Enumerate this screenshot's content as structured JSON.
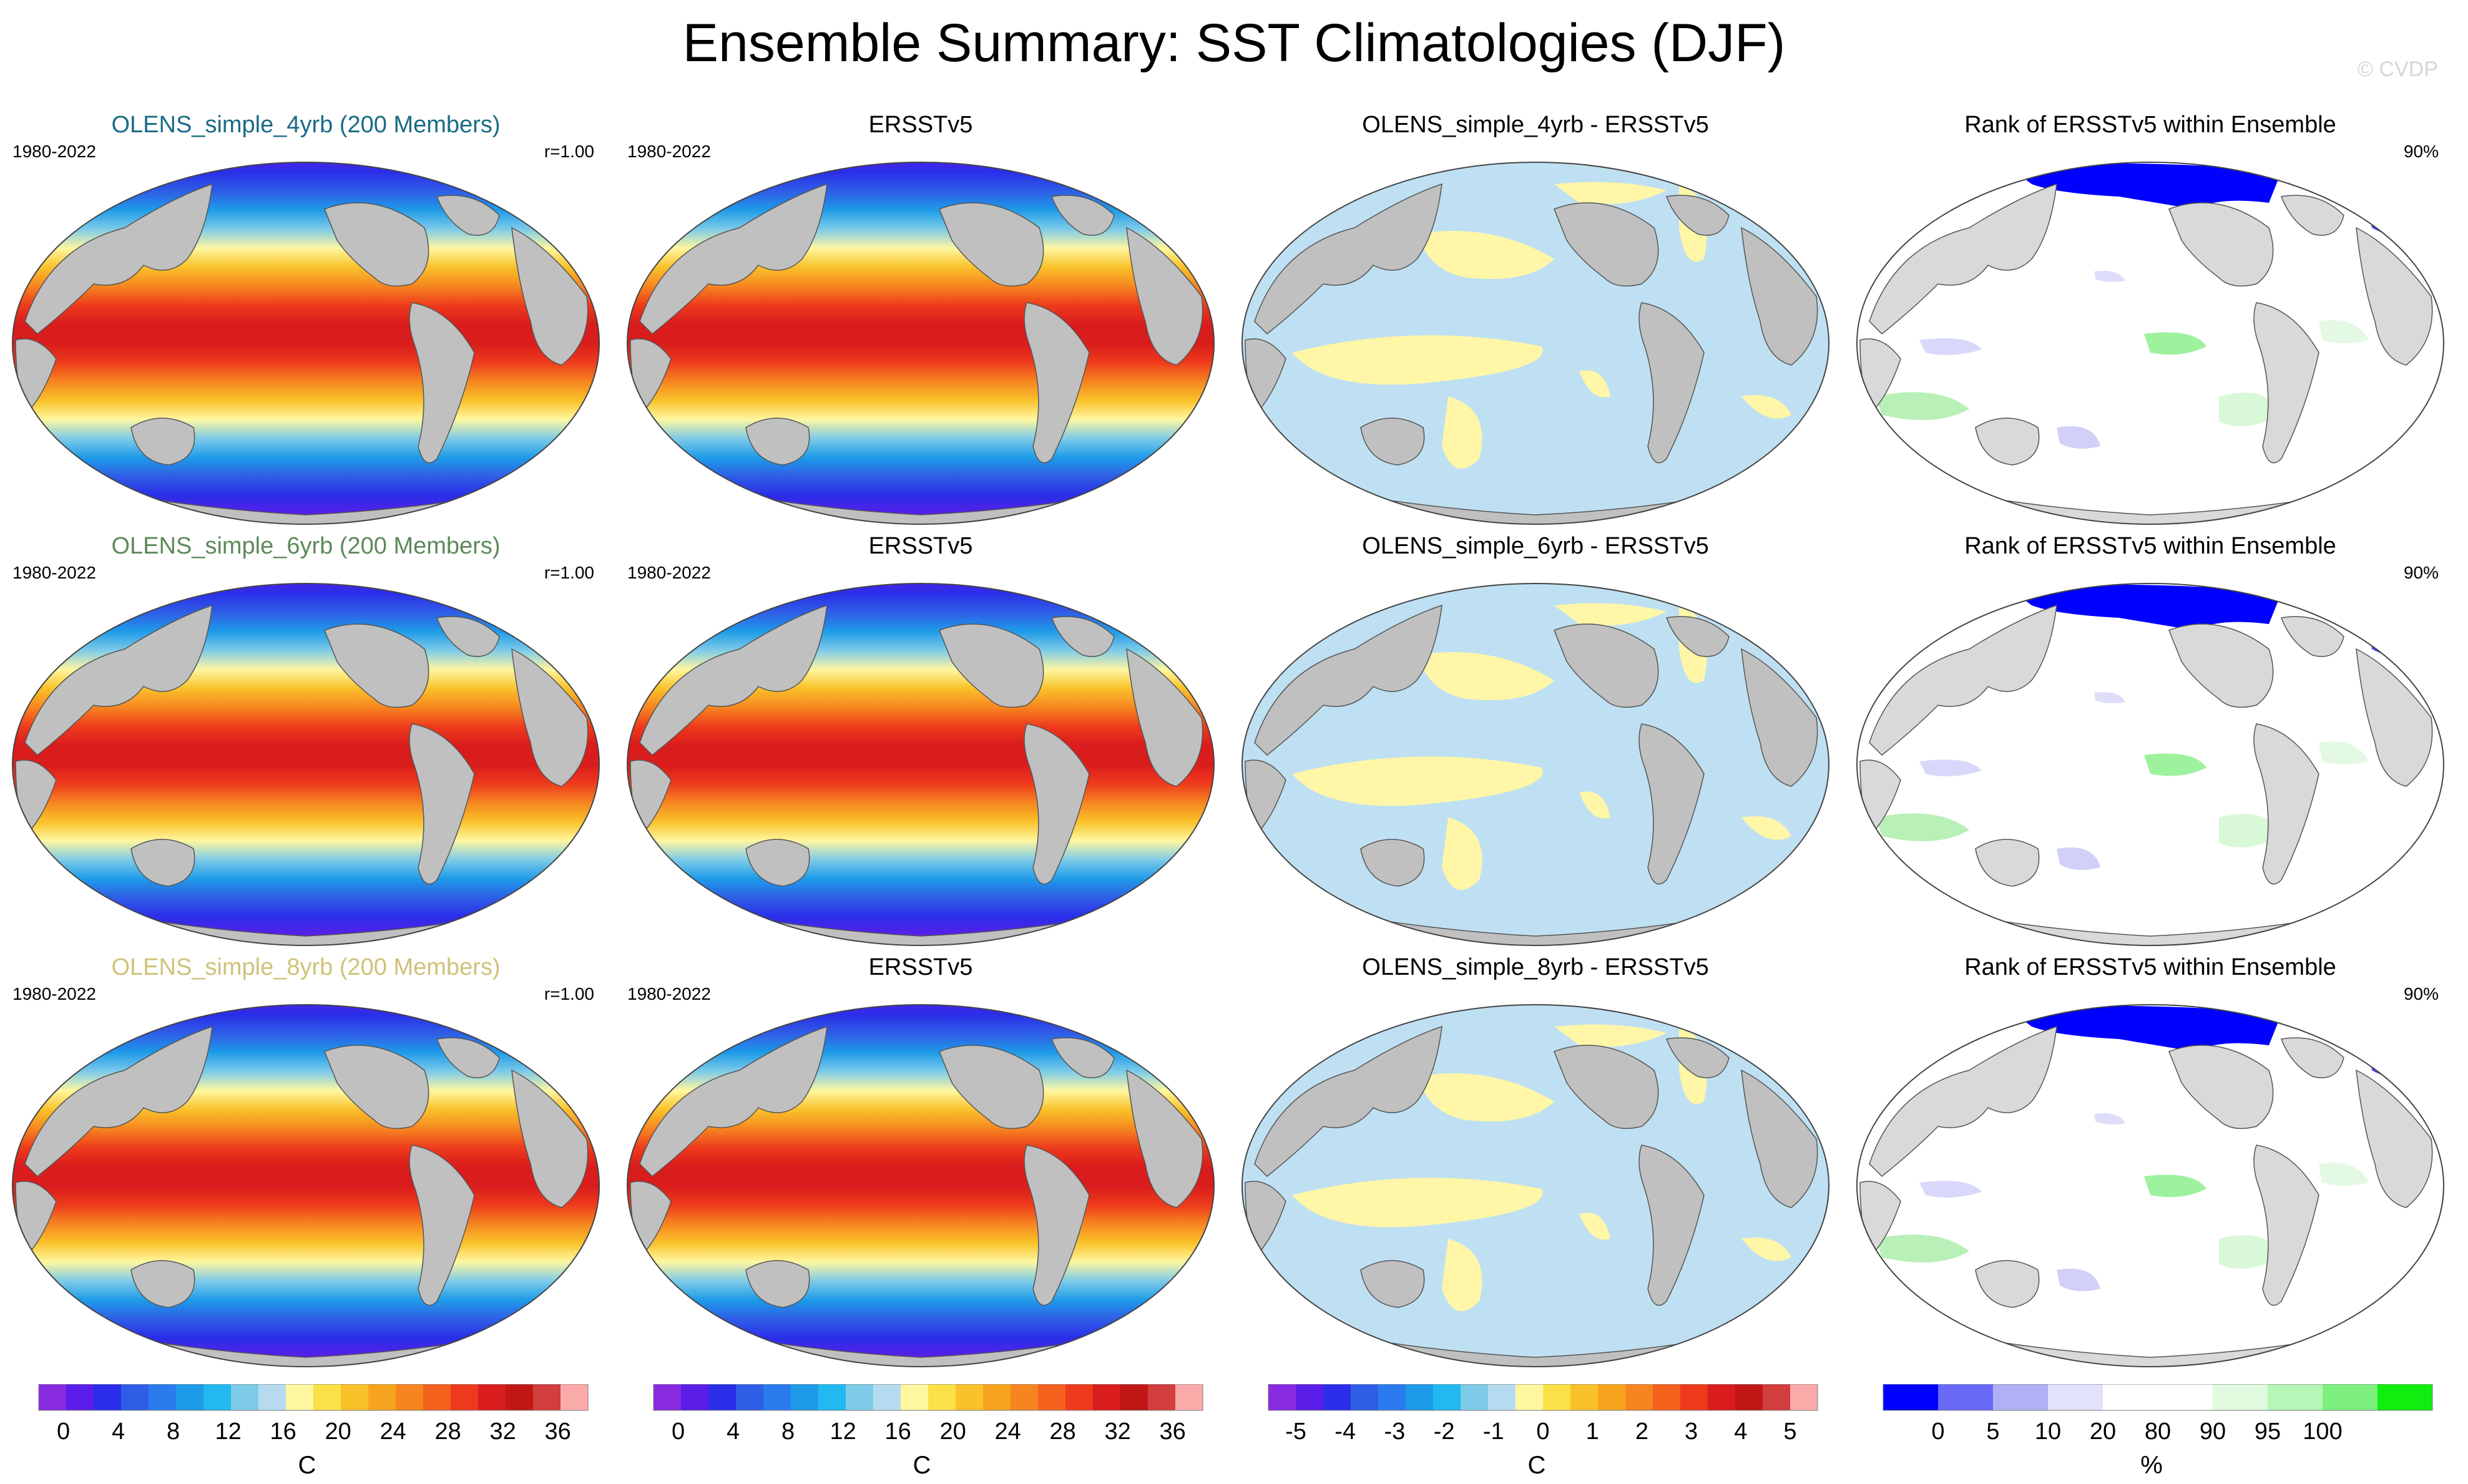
{
  "title": "Ensemble Summary: SST Climatologies (DJF)",
  "copyright": "© CVDP",
  "rows": [
    {
      "ensemble_title": "OLENS_simple_4yrb (200 Members)",
      "ensemble_title_color": "#1a6b86",
      "years": "1980-2022",
      "pattern_corr": "r=1.00",
      "obs_title": "ERSSTv5",
      "obs_years": "1980-2022",
      "diff_title": "OLENS_simple_4yrb - ERSSTv5",
      "rank_title": "Rank of ERSSTv5 within Ensemble",
      "rank_pct": "90%"
    },
    {
      "ensemble_title": "OLENS_simple_6yrb (200 Members)",
      "ensemble_title_color": "#5c8a5a",
      "years": "1980-2022",
      "pattern_corr": "r=1.00",
      "obs_title": "ERSSTv5",
      "obs_years": "1980-2022",
      "diff_title": "OLENS_simple_6yrb - ERSSTv5",
      "rank_title": "Rank of ERSSTv5 within Ensemble",
      "rank_pct": "90%"
    },
    {
      "ensemble_title": "OLENS_simple_8yrb (200 Members)",
      "ensemble_title_color": "#cfc27a",
      "years": "1980-2022",
      "pattern_corr": "r=1.00",
      "obs_title": "ERSSTv5",
      "obs_years": "1980-2022",
      "diff_title": "OLENS_simple_8yrb - ERSSTv5",
      "rank_title": "Rank of ERSSTv5 within Ensemble",
      "rank_pct": "90%"
    }
  ],
  "colorbars": [
    {
      "kind": "sst",
      "unit": "C",
      "labels": [
        "0",
        "4",
        "8",
        "12",
        "16",
        "20",
        "24",
        "28",
        "32",
        "36"
      ],
      "colors": [
        "#8a2be2",
        "#5a1ee8",
        "#2a2ee8",
        "#2f5ee6",
        "#2b7bef",
        "#1e9be8",
        "#22b8f0",
        "#7ecbe8",
        "#b6dbf1",
        "#fff7a0",
        "#fbe147",
        "#f9c22a",
        "#f7a51e",
        "#f68520",
        "#f4611d",
        "#ee3a1c",
        "#d91c1c",
        "#c11717",
        "#d23d3d",
        "#fbaaaa"
      ]
    },
    {
      "kind": "sst",
      "unit": "C",
      "labels": [
        "0",
        "4",
        "8",
        "12",
        "16",
        "20",
        "24",
        "28",
        "32",
        "36"
      ],
      "colors": [
        "#8a2be2",
        "#5a1ee8",
        "#2a2ee8",
        "#2f5ee6",
        "#2b7bef",
        "#1e9be8",
        "#22b8f0",
        "#7ecbe8",
        "#b6dbf1",
        "#fff7a0",
        "#fbe147",
        "#f9c22a",
        "#f7a51e",
        "#f68520",
        "#f4611d",
        "#ee3a1c",
        "#d91c1c",
        "#c11717",
        "#d23d3d",
        "#fbaaaa"
      ]
    },
    {
      "kind": "diff",
      "unit": "C",
      "labels": [
        "-5",
        "-4",
        "-3",
        "-2",
        "-1",
        "0",
        "1",
        "2",
        "3",
        "4",
        "5"
      ],
      "colors": [
        "#8a2be2",
        "#5a1ee8",
        "#2a2ee8",
        "#2f5ee6",
        "#2b7bef",
        "#1e9be8",
        "#22b8f0",
        "#7ecbe8",
        "#b6dbf1",
        "#fff7a0",
        "#fbe147",
        "#f9c22a",
        "#f7a51e",
        "#f68520",
        "#f4611d",
        "#ee3a1c",
        "#d91c1c",
        "#c11717",
        "#d23d3d",
        "#fbaaaa"
      ]
    },
    {
      "kind": "rank",
      "unit": "%",
      "labels": [
        "0",
        "5",
        "10",
        "20",
        "80",
        "90",
        "95",
        "100"
      ],
      "colors": [
        "#0000ff",
        "#6a6af8",
        "#b0b0f4",
        "#e2e2fb",
        "#ffffff",
        "#ffffff",
        "#e0fae0",
        "#b6f6b6",
        "#7ef07e",
        "#10ee10"
      ]
    }
  ],
  "colors": {
    "land": "#c0c0c0",
    "diff_negative": "#bfe0f2",
    "diff_positive": "#fff6a8",
    "rank_land": "#d9d9d9"
  }
}
